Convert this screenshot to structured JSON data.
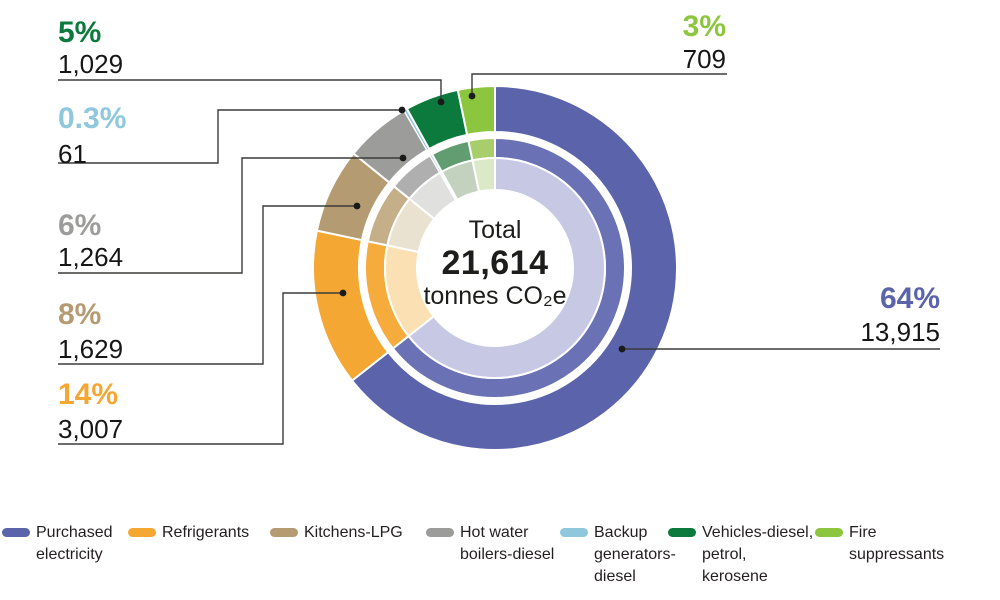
{
  "chart_data": {
    "type": "pie",
    "subtype": "three-ring-donut",
    "direction": "clockwise",
    "start_angle_deg": 0,
    "total": 21614,
    "center": {
      "title": "Total",
      "value": "21,614",
      "unit": "tonnes CO₂e"
    },
    "legend_position": "bottom",
    "segments": [
      {
        "label": "Purchased electricity",
        "value": 13915,
        "pct": "64%",
        "color": "#5B63AB",
        "color_mid": "#6A71B4",
        "color_pale": "#C7C8E4"
      },
      {
        "label": "Refrigerants",
        "value": 3007,
        "pct": "14%",
        "color": "#F5A733",
        "color_mid": "#F6AC3D",
        "color_pale": "#FBE0B4"
      },
      {
        "label": "Kitchens-LPG",
        "value": 1629,
        "pct": "8%",
        "color": "#B59B72",
        "color_mid": "#C5AF89",
        "color_pale": "#EAE2D0"
      },
      {
        "label": "Hot water boilers-diesel",
        "value": 1264,
        "pct": "6%",
        "color": "#9C9C9B",
        "color_mid": "#AFAFAF",
        "color_pale": "#E0E0DF"
      },
      {
        "label": "Backup generators-diesel",
        "value": 61,
        "pct": "0.3%",
        "color": "#8FC7DD",
        "color_mid": "#A9D7E8",
        "color_pale": "#DFF0F6"
      },
      {
        "label": "Vehicles-diesel, petrol, kerosene",
        "value": 1029,
        "pct": "5%",
        "color": "#0B7A3C",
        "color_mid": "#619D70",
        "color_pale": "#C3D2BF"
      },
      {
        "label": "Fire suppressants",
        "value": 709,
        "pct": "3%",
        "color": "#8CC63F",
        "color_mid": "#A8CE6B",
        "color_pale": "#DCE9C8"
      }
    ]
  },
  "center": {
    "title": "Total",
    "value": "21,614",
    "unit": "tonnes CO₂e"
  },
  "callouts": {
    "purchased": {
      "pct": "64%",
      "value": "13,915"
    },
    "refrigerants": {
      "pct": "14%",
      "value": "3,007"
    },
    "kitchens": {
      "pct": "8%",
      "value": "1,629"
    },
    "hotwater": {
      "pct": "6%",
      "value": "1,264"
    },
    "backup": {
      "pct": "0.3%",
      "value": "61"
    },
    "vehicles": {
      "pct": "5%",
      "value": "1,029"
    },
    "fire": {
      "pct": "3%",
      "value": "709"
    }
  },
  "legend": {
    "items": [
      {
        "label": "Purchased\nelectricity",
        "color": "#5B63AB"
      },
      {
        "label": "Refrigerants",
        "color": "#F5A733"
      },
      {
        "label": "Kitchens-LPG",
        "color": "#B59B72"
      },
      {
        "label": "Hot water\nboilers-diesel",
        "color": "#9C9C9B"
      },
      {
        "label": "Backup\ngenerators-\ndiesel",
        "color": "#8FC7DD"
      },
      {
        "label": "Vehicles-diesel,\npetrol,\nkerosene",
        "color": "#0B7A3C"
      },
      {
        "label": "Fire\nsuppressants",
        "color": "#8CC63F"
      }
    ]
  }
}
